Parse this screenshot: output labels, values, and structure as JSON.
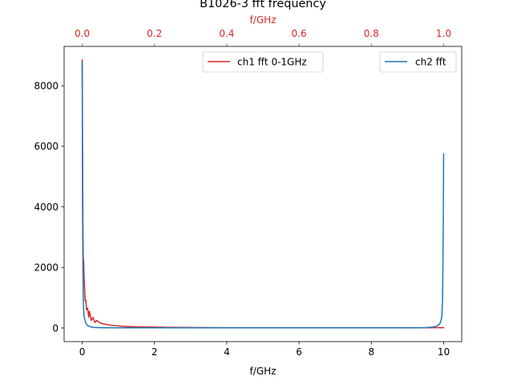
{
  "chart_data": {
    "type": "line",
    "title": "B1026-3 fft frequency",
    "xlabel": "f/GHz",
    "ylabel": "",
    "secondary_xlabel": "f/GHz",
    "xlim": [
      -0.5,
      10.5
    ],
    "ylim": [
      -450,
      9300
    ],
    "secondary_xlim": [
      -0.05,
      1.05
    ],
    "xticks": [
      0,
      2,
      4,
      6,
      8,
      10
    ],
    "xtick_labels": [
      "0",
      "2",
      "4",
      "6",
      "8",
      "10"
    ],
    "yticks": [
      0,
      2000,
      4000,
      6000,
      8000
    ],
    "ytick_labels": [
      "0",
      "2000",
      "4000",
      "6000",
      "8000"
    ],
    "secondary_xticks": [
      0.0,
      0.2,
      0.4,
      0.6,
      0.8,
      1.0
    ],
    "secondary_xtick_labels": [
      "0.0",
      "0.2",
      "0.4",
      "0.6",
      "0.8",
      "1.0"
    ],
    "grid": false,
    "series": [
      {
        "name": "ch1 fft 0-1GHz",
        "color": "#d62728",
        "axis": "secondary_x",
        "legend_position": "top-center",
        "x": [
          0.0,
          0.001,
          0.002,
          0.003,
          0.004,
          0.005,
          0.006,
          0.008,
          0.01,
          0.012,
          0.015,
          0.018,
          0.02,
          0.025,
          0.03,
          0.035,
          0.04,
          0.045,
          0.05,
          0.055,
          0.06,
          0.07,
          0.08,
          0.09,
          0.1,
          0.12,
          0.15,
          0.2,
          0.25,
          0.3,
          0.4,
          0.5,
          0.6,
          0.7,
          0.8,
          0.9,
          0.95,
          1.0
        ],
        "y": [
          8850,
          6200,
          3400,
          2150,
          2250,
          1750,
          1500,
          900,
          920,
          600,
          650,
          350,
          550,
          250,
          350,
          180,
          250,
          200,
          170,
          150,
          130,
          110,
          90,
          80,
          70,
          50,
          40,
          30,
          20,
          15,
          10,
          10,
          10,
          10,
          10,
          10,
          10,
          10
        ]
      },
      {
        "name": "ch2 fft",
        "color": "#1f77b4",
        "axis": "primary_x",
        "legend_position": "top-right",
        "x": [
          0.0,
          0.01,
          0.02,
          0.03,
          0.05,
          0.08,
          0.1,
          0.15,
          0.2,
          0.3,
          0.5,
          1.0,
          2.0,
          4.0,
          6.0,
          8.0,
          9.0,
          9.5,
          9.7,
          9.8,
          9.85,
          9.9,
          9.93,
          9.95,
          9.97,
          9.98,
          9.99,
          10.0
        ],
        "y": [
          8800,
          4000,
          2000,
          900,
          400,
          250,
          150,
          80,
          50,
          20,
          10,
          5,
          5,
          5,
          5,
          5,
          5,
          10,
          30,
          60,
          90,
          150,
          250,
          400,
          900,
          2000,
          3500,
          5750
        ]
      }
    ]
  }
}
